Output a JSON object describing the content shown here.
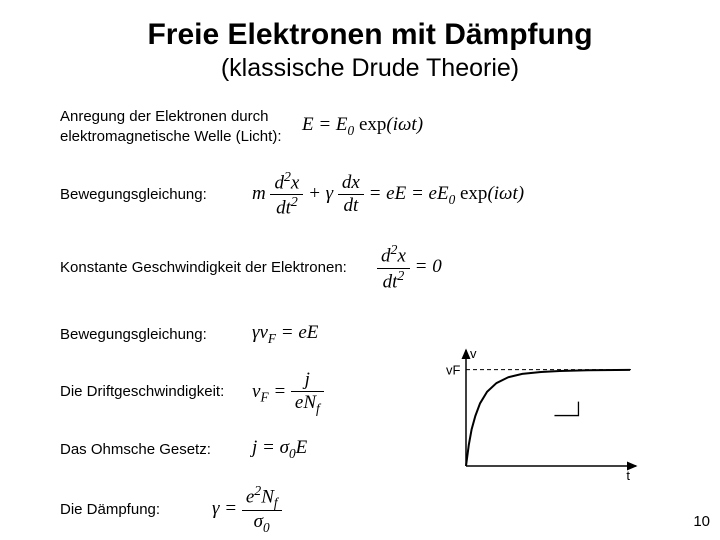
{
  "title": "Freie Elektronen mit Dämpfung",
  "subtitle": "(klassische Drude Theorie)",
  "row1_label": "Anregung der Elektronen durch elektromagnetische Welle (Licht):",
  "row2_label": "Bewegungsgleichung:",
  "row3_label": "Konstante Geschwindigkeit der Elektronen:",
  "row4_label": "Bewegungsgleichung:",
  "row5_label": "Die Driftgeschwindigkeit:",
  "row6_label": "Das Ohmsche Gesetz:",
  "row7_label": "Die Dämpfung:",
  "page_number": "10",
  "chart": {
    "type": "line",
    "x_axis_label": "t",
    "y_axis_label": "v",
    "asymptote_label": "vF",
    "axis_color": "#000000",
    "curve_color": "#000000",
    "dash_color": "#000000",
    "curve_width": 2,
    "tau_marker": true,
    "points_x": [
      0,
      0.06,
      0.12,
      0.2,
      0.3,
      0.45,
      0.65,
      0.9,
      1.2,
      1.6,
      2.0,
      2.6,
      3.5
    ],
    "points_y": [
      0,
      0.22,
      0.38,
      0.52,
      0.65,
      0.77,
      0.86,
      0.92,
      0.955,
      0.975,
      0.985,
      0.993,
      0.997
    ],
    "x_range": [
      0,
      3.5
    ],
    "y_range": [
      0,
      1.12
    ],
    "vF_level": 1.0
  }
}
